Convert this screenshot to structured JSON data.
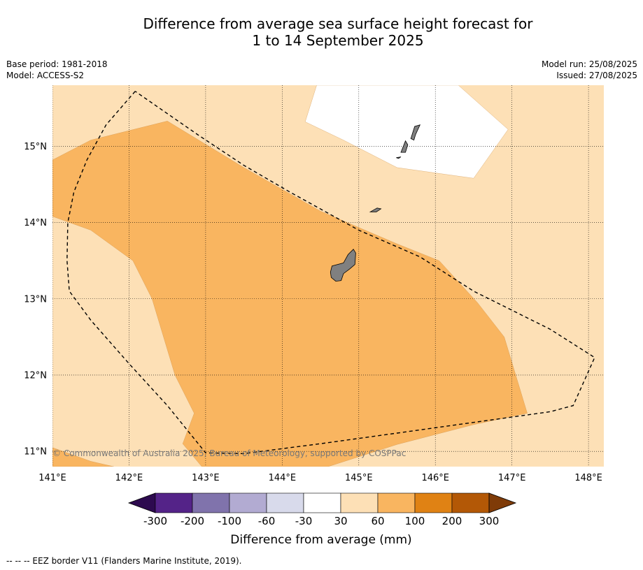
{
  "title": {
    "line1": "Difference from average sea surface height forecast for",
    "line2": "1 to 14 September 2025"
  },
  "meta_left": {
    "base_period": "Base period: 1981-2018",
    "model": "Model: ACCESS-S2"
  },
  "meta_right": {
    "model_run": "Model run: 25/08/2025",
    "issued": "Issued: 27/08/2025"
  },
  "copyright": "© Commonwealth of Australia 2025, Bureau of Meteorology, supported by COSPPac",
  "footnote": "--  --  -- EEZ border V11 (Flanders Marine Institute, 2019).",
  "map": {
    "lon_range": [
      141.0,
      148.2
    ],
    "lat_range": [
      10.8,
      15.8
    ],
    "lon_ticks": [
      {
        "value": 141,
        "label": "141°E"
      },
      {
        "value": 142,
        "label": "142°E"
      },
      {
        "value": 143,
        "label": "143°E"
      },
      {
        "value": 144,
        "label": "144°E"
      },
      {
        "value": 145,
        "label": "145°E"
      },
      {
        "value": 146,
        "label": "146°E"
      },
      {
        "value": 147,
        "label": "147°E"
      },
      {
        "value": 148,
        "label": "148°E"
      }
    ],
    "lat_ticks": [
      {
        "value": 15,
        "label": "15°N"
      },
      {
        "value": 14,
        "label": "14°N"
      },
      {
        "value": 13,
        "label": "13°N"
      },
      {
        "value": 12,
        "label": "12°N"
      },
      {
        "value": 11,
        "label": "11°N"
      }
    ],
    "background_class": "30 to 60",
    "regions": [
      {
        "name": "60-100-region",
        "class": "60 to 100",
        "points": [
          [
            141.0,
            14.82
          ],
          [
            141.5,
            15.08
          ],
          [
            142.5,
            15.33
          ],
          [
            143.5,
            14.72
          ],
          [
            144.5,
            14.15
          ],
          [
            145.5,
            13.72
          ],
          [
            146.05,
            13.5
          ],
          [
            146.55,
            12.95
          ],
          [
            146.9,
            12.5
          ],
          [
            147.2,
            11.5
          ],
          [
            146.5,
            11.35
          ],
          [
            145.5,
            11.09
          ],
          [
            144.6,
            10.8
          ],
          [
            142.95,
            10.8
          ],
          [
            142.7,
            11.1
          ],
          [
            142.85,
            11.5
          ],
          [
            142.6,
            12.0
          ],
          [
            142.45,
            12.5
          ],
          [
            142.3,
            13.0
          ],
          [
            142.05,
            13.5
          ],
          [
            141.5,
            13.9
          ],
          [
            141.0,
            14.08
          ]
        ]
      },
      {
        "name": "60-100-corner-region",
        "class": "60 to 100",
        "points": [
          [
            141.0,
            11.05
          ],
          [
            141.5,
            10.87
          ],
          [
            141.8,
            10.8
          ],
          [
            141.0,
            10.8
          ]
        ]
      },
      {
        "name": "30-to-minus30-region",
        "class": "-30 to 30",
        "points": [
          [
            144.45,
            15.8
          ],
          [
            145.8,
            15.8
          ],
          [
            146.3,
            15.8
          ],
          [
            146.95,
            15.22
          ],
          [
            146.5,
            14.58
          ],
          [
            145.5,
            14.72
          ],
          [
            144.8,
            15.08
          ],
          [
            144.3,
            15.32
          ],
          [
            144.45,
            15.8
          ]
        ]
      }
    ],
    "islands": [
      {
        "name": "guam",
        "points": [
          [
            144.65,
            13.43
          ],
          [
            144.8,
            13.47
          ],
          [
            144.86,
            13.58
          ],
          [
            144.93,
            13.65
          ],
          [
            144.96,
            13.6
          ],
          [
            144.95,
            13.45
          ],
          [
            144.88,
            13.39
          ],
          [
            144.8,
            13.33
          ],
          [
            144.77,
            13.24
          ],
          [
            144.7,
            13.23
          ],
          [
            144.64,
            13.28
          ],
          [
            144.63,
            13.35
          ]
        ]
      },
      {
        "name": "rota",
        "points": [
          [
            145.15,
            14.14
          ],
          [
            145.24,
            14.19
          ],
          [
            145.29,
            14.18
          ],
          [
            145.23,
            14.14
          ]
        ]
      },
      {
        "name": "tinian",
        "points": [
          [
            145.55,
            14.92
          ],
          [
            145.61,
            15.07
          ],
          [
            145.64,
            15.02
          ],
          [
            145.61,
            14.92
          ]
        ]
      },
      {
        "name": "saipan",
        "points": [
          [
            145.68,
            15.1
          ],
          [
            145.73,
            15.26
          ],
          [
            145.8,
            15.28
          ],
          [
            145.74,
            15.15
          ],
          [
            145.72,
            15.08
          ]
        ]
      },
      {
        "name": "aguijan",
        "points": [
          [
            145.49,
            14.85
          ],
          [
            145.55,
            14.86
          ],
          [
            145.52,
            14.84
          ]
        ]
      }
    ],
    "eez_border": [
      [
        142.08,
        15.72
      ],
      [
        141.7,
        15.28
      ],
      [
        141.45,
        14.82
      ],
      [
        141.28,
        14.4
      ],
      [
        141.2,
        14.0
      ],
      [
        141.19,
        13.5
      ],
      [
        141.22,
        13.1
      ],
      [
        141.5,
        12.72
      ],
      [
        142.0,
        12.15
      ],
      [
        142.5,
        11.6
      ],
      [
        143.0,
        10.98
      ],
      [
        143.5,
        10.97
      ],
      [
        144.5,
        11.1
      ],
      [
        145.5,
        11.24
      ],
      [
        146.5,
        11.38
      ],
      [
        147.5,
        11.52
      ],
      [
        147.8,
        11.6
      ],
      [
        148.08,
        12.23
      ],
      [
        147.5,
        12.6
      ],
      [
        146.5,
        13.1
      ],
      [
        145.8,
        13.55
      ],
      [
        145.0,
        13.9
      ],
      [
        144.1,
        14.4
      ],
      [
        143.5,
        14.75
      ],
      [
        142.9,
        15.15
      ],
      [
        142.08,
        15.72
      ]
    ]
  },
  "colorbar": {
    "title": "Difference from average (mm)",
    "boundaries": [
      "-300",
      "-200",
      "-100",
      "-60",
      "-30",
      "30",
      "60",
      "100",
      "200",
      "300"
    ],
    "classes": [
      {
        "label": "< -300",
        "color": "#2d0a4f"
      },
      {
        "label": "-300 to -200",
        "color": "#542388"
      },
      {
        "label": "-200 to -100",
        "color": "#8073ac"
      },
      {
        "label": "-100 to -60",
        "color": "#b2abd2"
      },
      {
        "label": "-60 to -30",
        "color": "#d8daeb"
      },
      {
        "label": "-30 to 30",
        "color": "#ffffff"
      },
      {
        "label": "30 to 60",
        "color": "#fde0b6"
      },
      {
        "label": "60 to 100",
        "color": "#f9b560"
      },
      {
        "label": "100 to 200",
        "color": "#e08214"
      },
      {
        "label": "200 to 300",
        "color": "#b35806"
      },
      {
        "label": "> 300",
        "color": "#7f3b08"
      }
    ],
    "colors": {
      "30 to 60": "#fde0b6",
      "60 to 100": "#f9b560",
      "-30 to 30": "#ffffff",
      "land": "#808080"
    }
  }
}
